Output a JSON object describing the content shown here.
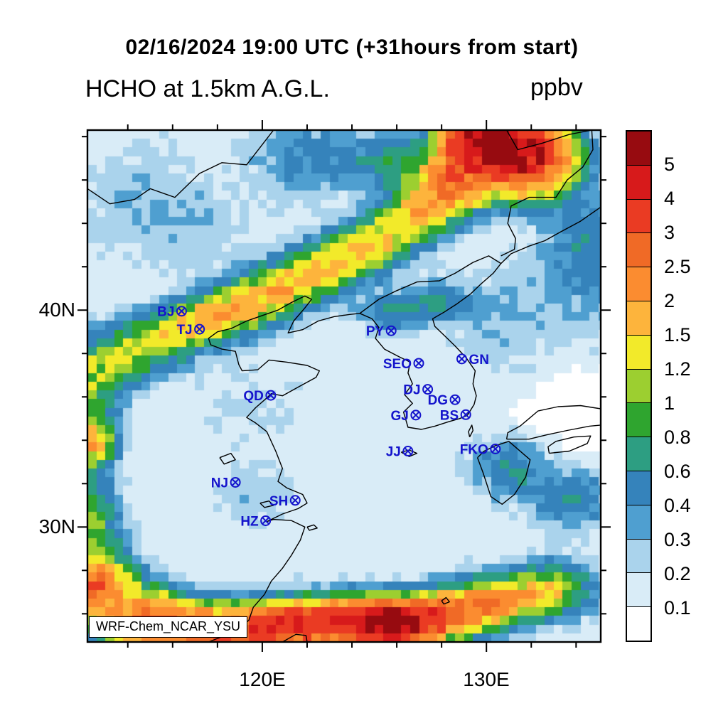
{
  "titles": {
    "datetime": "02/16/2024 19:00 UTC (+31hours from start)",
    "variable": "HCHO at 1.5km A.G.L.",
    "units": "ppbv"
  },
  "watermark": "WRF-Chem_NCAR_YSU",
  "axes": {
    "x_major": [
      {
        "deg": 120,
        "label": "120E"
      },
      {
        "deg": 130,
        "label": "130E"
      }
    ],
    "y_major": [
      {
        "deg": 40,
        "label": "40N"
      },
      {
        "deg": 30,
        "label": "30N"
      }
    ],
    "minor_step_deg": 2
  },
  "station_color": "#1414cc",
  "stations": [
    {
      "id": "BJ",
      "lon": 116.4,
      "lat": 39.95,
      "side": "left"
    },
    {
      "id": "TJ",
      "lon": 117.2,
      "lat": 39.12,
      "side": "left"
    },
    {
      "id": "PY",
      "lon": 125.75,
      "lat": 39.05,
      "side": "left"
    },
    {
      "id": "SEO",
      "lon": 126.98,
      "lat": 37.55,
      "side": "left"
    },
    {
      "id": "GN",
      "lon": 128.9,
      "lat": 37.75,
      "side": "right"
    },
    {
      "id": "QD",
      "lon": 120.38,
      "lat": 36.07,
      "side": "left"
    },
    {
      "id": "DJ",
      "lon": 127.38,
      "lat": 36.35,
      "side": "left"
    },
    {
      "id": "DG",
      "lon": 128.6,
      "lat": 35.87,
      "side": "left"
    },
    {
      "id": "GJ",
      "lon": 126.85,
      "lat": 35.16,
      "side": "left"
    },
    {
      "id": "BS",
      "lon": 129.08,
      "lat": 35.18,
      "side": "left"
    },
    {
      "id": "JJ",
      "lon": 126.5,
      "lat": 33.5,
      "side": "left"
    },
    {
      "id": "FKO",
      "lon": 130.4,
      "lat": 33.6,
      "side": "left"
    },
    {
      "id": "NJ",
      "lon": 118.8,
      "lat": 32.06,
      "side": "left"
    },
    {
      "id": "SH",
      "lon": 121.47,
      "lat": 31.23,
      "side": "left"
    },
    {
      "id": "HZ",
      "lon": 120.15,
      "lat": 30.29,
      "side": "left"
    }
  ],
  "chart_data": {
    "type": "heatmap",
    "title": "HCHO at 1.5km A.G.L.",
    "subtitle": "02/16/2024 19:00 UTC (+31hours from start)",
    "units": "ppbv",
    "model": "WRF-Chem_NCAR_YSU",
    "lon_range": [
      112.2,
      135.1
    ],
    "lat_range": [
      24.7,
      48.3
    ],
    "levels": [
      0.1,
      0.2,
      0.3,
      0.4,
      0.6,
      0.8,
      1,
      1.2,
      1.5,
      2,
      2.5,
      3,
      4,
      5
    ],
    "band_colors": [
      "#ffffff",
      "#d9ecf7",
      "#aad3ec",
      "#4f9fd0",
      "#3583bb",
      "#2d9e82",
      "#2fa52f",
      "#9ccf30",
      "#f2ea2a",
      "#fdb43c",
      "#fb8c30",
      "#f06a26",
      "#ea3b23",
      "#d71a1b",
      "#970b10"
    ],
    "field": {
      "base": 0.14,
      "noise": 0.22,
      "cell_deg": 0.4,
      "blobs": [
        [
          130.0,
          47.9,
          1.7,
          1.2,
          5.2
        ],
        [
          131.8,
          47.0,
          1.9,
          1.5,
          4.2
        ],
        [
          128.8,
          46.1,
          1.5,
          1.2,
          2.2
        ],
        [
          127.5,
          44.9,
          1.4,
          1.1,
          1.3
        ],
        [
          125.8,
          46.8,
          1.6,
          1.2,
          0.6
        ],
        [
          126.2,
          43.9,
          1.5,
          1.0,
          1.1
        ],
        [
          124.6,
          42.9,
          1.6,
          1.0,
          1.2
        ],
        [
          122.8,
          41.9,
          1.7,
          1.0,
          1.3
        ],
        [
          120.8,
          40.9,
          1.7,
          1.0,
          1.4
        ],
        [
          118.8,
          40.0,
          1.6,
          1.0,
          1.35
        ],
        [
          117.0,
          39.3,
          1.5,
          1.0,
          1.2
        ],
        [
          115.2,
          38.5,
          1.5,
          1.1,
          1.0
        ],
        [
          113.4,
          37.7,
          1.4,
          1.2,
          0.9
        ],
        [
          125.8,
          39.9,
          1.3,
          0.8,
          0.5
        ],
        [
          127.9,
          40.4,
          1.4,
          0.9,
          0.45
        ],
        [
          112.2,
          36.0,
          1.2,
          1.8,
          0.9
        ],
        [
          112.4,
          33.9,
          0.9,
          0.9,
          1.7
        ],
        [
          112.2,
          31.3,
          1.2,
          1.6,
          0.6
        ],
        [
          112.3,
          29.6,
          1.2,
          1.2,
          0.7
        ],
        [
          112.4,
          27.2,
          1.6,
          1.4,
          2.6
        ],
        [
          114.9,
          25.7,
          1.8,
          1.2,
          2.4
        ],
        [
          117.3,
          25.2,
          1.8,
          1.1,
          2.2
        ],
        [
          119.8,
          25.3,
          1.8,
          1.0,
          2.5
        ],
        [
          122.0,
          25.6,
          1.8,
          1.0,
          2.9
        ],
        [
          124.3,
          25.6,
          1.6,
          1.0,
          3.1
        ],
        [
          126.1,
          25.5,
          1.4,
          0.9,
          5.5
        ],
        [
          128.2,
          26.0,
          1.7,
          1.0,
          2.6
        ],
        [
          130.6,
          26.6,
          1.7,
          1.0,
          1.7
        ],
        [
          132.9,
          27.1,
          1.7,
          1.1,
          1.1
        ],
        [
          131.0,
          32.7,
          1.4,
          1.2,
          0.5
        ],
        [
          133.8,
          31.3,
          1.6,
          1.3,
          0.45
        ],
        [
          134.5,
          41.5,
          2.6,
          2.6,
          0.25
        ],
        [
          134.8,
          43.6,
          1.6,
          1.6,
          0.3
        ],
        [
          130.4,
          39.4,
          2.0,
          2.0,
          0.15
        ],
        [
          122.0,
          47.0,
          2.2,
          1.6,
          0.35
        ],
        [
          114.5,
          45.2,
          3.0,
          2.4,
          0.15
        ],
        [
          117.2,
          43.6,
          2.2,
          2.0,
          0.12
        ],
        [
          119.6,
          31.4,
          1.6,
          1.2,
          0.15
        ],
        [
          119.5,
          35.6,
          2.0,
          2.0,
          0.1
        ],
        [
          132.6,
          35.2,
          1.6,
          0.9,
          -0.1
        ],
        [
          134.6,
          34.0,
          1.5,
          1.3,
          -0.09
        ],
        [
          134.2,
          36.4,
          1.5,
          1.2,
          -0.1
        ]
      ]
    }
  },
  "coastlines": [
    {
      "name": "china-coast",
      "pts": [
        [
          117.6,
          24.7
        ],
        [
          118.1,
          24.9
        ],
        [
          118.8,
          25.2
        ],
        [
          119.4,
          25.7
        ],
        [
          119.6,
          26.3
        ],
        [
          120.1,
          26.9
        ],
        [
          120.4,
          27.5
        ],
        [
          120.9,
          28.1
        ],
        [
          121.3,
          28.7
        ],
        [
          121.7,
          29.4
        ],
        [
          121.9,
          30.0
        ],
        [
          121.3,
          30.3
        ],
        [
          120.5,
          30.35
        ],
        [
          120.2,
          30.25
        ],
        [
          120.9,
          30.6
        ],
        [
          121.6,
          30.85
        ],
        [
          122.0,
          31.1
        ],
        [
          121.8,
          31.5
        ],
        [
          121.1,
          31.8
        ],
        [
          120.7,
          32.1
        ],
        [
          120.9,
          32.7
        ],
        [
          120.6,
          33.5
        ],
        [
          120.2,
          34.4
        ],
        [
          119.7,
          34.8
        ],
        [
          119.3,
          35.05
        ],
        [
          119.7,
          35.5
        ],
        [
          120.2,
          35.95
        ],
        [
          120.4,
          36.15
        ],
        [
          120.9,
          36.05
        ],
        [
          121.6,
          36.45
        ],
        [
          122.4,
          36.9
        ],
        [
          122.55,
          37.2
        ],
        [
          122.0,
          37.45
        ],
        [
          121.1,
          37.6
        ],
        [
          120.3,
          37.7
        ],
        [
          119.8,
          37.25
        ],
        [
          119.1,
          37.2
        ],
        [
          118.95,
          37.5
        ],
        [
          118.8,
          38.1
        ],
        [
          118.2,
          38.2
        ],
        [
          117.7,
          38.4
        ],
        [
          117.6,
          38.7
        ],
        [
          118.0,
          39.0
        ],
        [
          118.6,
          39.15
        ],
        [
          119.3,
          39.5
        ],
        [
          120.0,
          39.75
        ],
        [
          120.7,
          40.0
        ],
        [
          121.3,
          40.35
        ],
        [
          121.9,
          40.65
        ],
        [
          122.2,
          40.5
        ],
        [
          121.9,
          40.1
        ],
        [
          121.4,
          39.5
        ],
        [
          121.15,
          38.95
        ],
        [
          121.8,
          39.1
        ],
        [
          122.5,
          39.5
        ],
        [
          123.2,
          39.7
        ],
        [
          123.9,
          39.8
        ],
        [
          124.35,
          39.85
        ]
      ]
    },
    {
      "name": "korea-coast",
      "pts": [
        [
          124.35,
          39.85
        ],
        [
          124.9,
          39.6
        ],
        [
          125.2,
          39.2
        ],
        [
          125.05,
          38.7
        ],
        [
          125.45,
          38.2
        ],
        [
          126.1,
          37.85
        ],
        [
          126.6,
          37.6
        ],
        [
          126.5,
          37.1
        ],
        [
          126.7,
          36.6
        ],
        [
          126.35,
          36.1
        ],
        [
          126.7,
          35.7
        ],
        [
          126.3,
          35.3
        ],
        [
          126.5,
          34.6
        ],
        [
          127.1,
          34.5
        ],
        [
          127.7,
          34.65
        ],
        [
          128.3,
          34.85
        ],
        [
          128.8,
          35.0
        ],
        [
          129.15,
          35.15
        ],
        [
          129.45,
          35.65
        ],
        [
          129.55,
          36.05
        ],
        [
          129.4,
          36.6
        ],
        [
          129.5,
          37.2
        ],
        [
          129.1,
          37.8
        ],
        [
          128.6,
          38.35
        ],
        [
          128.1,
          38.85
        ],
        [
          127.7,
          39.25
        ],
        [
          127.6,
          39.6
        ],
        [
          128.1,
          39.9
        ],
        [
          128.7,
          40.3
        ],
        [
          129.3,
          40.75
        ],
        [
          129.75,
          41.2
        ],
        [
          130.3,
          41.7
        ],
        [
          130.65,
          42.15
        ],
        [
          131.1,
          42.6
        ],
        [
          131.9,
          42.95
        ],
        [
          132.6,
          43.2
        ],
        [
          133.3,
          43.6
        ],
        [
          134.2,
          44.1
        ],
        [
          135.1,
          44.75
        ]
      ]
    },
    {
      "name": "yalu-tumen-border",
      "pts": [
        [
          124.35,
          39.85
        ],
        [
          125.2,
          40.5
        ],
        [
          126.0,
          40.9
        ],
        [
          126.9,
          41.3
        ],
        [
          127.9,
          41.35
        ],
        [
          128.6,
          41.7
        ],
        [
          129.4,
          42.2
        ],
        [
          130.1,
          42.5
        ],
        [
          130.65,
          42.15
        ]
      ]
    },
    {
      "name": "ussuri-border",
      "pts": [
        [
          130.9,
          48.3
        ],
        [
          131.4,
          47.4
        ],
        [
          132.5,
          47.7
        ],
        [
          133.7,
          48.1
        ],
        [
          134.7,
          48.3
        ],
        [
          134.75,
          47.4
        ],
        [
          134.3,
          46.6
        ],
        [
          133.6,
          46.0
        ],
        [
          133.1,
          45.2
        ],
        [
          131.9,
          45.2
        ],
        [
          131.1,
          44.8
        ],
        [
          130.95,
          44.0
        ],
        [
          131.3,
          43.3
        ],
        [
          131.25,
          42.8
        ],
        [
          130.65,
          42.5
        ]
      ]
    },
    {
      "name": "mongolia-border",
      "pts": [
        [
          112.2,
          45.6
        ],
        [
          113.2,
          44.9
        ],
        [
          114.3,
          45.1
        ],
        [
          115.0,
          45.6
        ],
        [
          116.1,
          45.2
        ],
        [
          117.2,
          46.3
        ],
        [
          118.2,
          46.8
        ],
        [
          119.3,
          46.7
        ],
        [
          119.9,
          47.5
        ],
        [
          120.5,
          48.3
        ]
      ]
    },
    {
      "name": "kyushu",
      "pts": [
        [
          129.6,
          33.2
        ],
        [
          129.85,
          32.5
        ],
        [
          130.2,
          31.4
        ],
        [
          130.7,
          31.05
        ],
        [
          131.25,
          31.5
        ],
        [
          131.75,
          32.3
        ],
        [
          131.95,
          33.1
        ],
        [
          131.0,
          33.95
        ],
        [
          130.4,
          33.75
        ],
        [
          129.9,
          33.5
        ],
        [
          129.6,
          33.2
        ]
      ]
    },
    {
      "name": "honshu-south-coast",
      "pts": [
        [
          130.9,
          34.05
        ],
        [
          131.9,
          34.05
        ],
        [
          132.7,
          34.25
        ],
        [
          133.6,
          34.45
        ],
        [
          134.6,
          34.65
        ],
        [
          135.1,
          34.7
        ]
      ]
    },
    {
      "name": "honshu-north-coast",
      "pts": [
        [
          135.1,
          35.45
        ],
        [
          134.2,
          35.6
        ],
        [
          133.2,
          35.55
        ],
        [
          132.3,
          35.35
        ],
        [
          131.5,
          34.65
        ],
        [
          130.95,
          34.35
        ],
        [
          130.9,
          34.05
        ]
      ]
    },
    {
      "name": "shikoku",
      "pts": [
        [
          132.8,
          33.4
        ],
        [
          133.7,
          33.5
        ],
        [
          134.5,
          33.85
        ],
        [
          134.65,
          34.2
        ],
        [
          133.9,
          34.15
        ],
        [
          133.1,
          33.95
        ],
        [
          132.75,
          33.7
        ],
        [
          132.8,
          33.4
        ]
      ]
    },
    {
      "name": "jeju-island",
      "pts": [
        [
          126.2,
          33.45
        ],
        [
          126.55,
          33.55
        ],
        [
          126.9,
          33.4
        ],
        [
          126.55,
          33.25
        ],
        [
          126.2,
          33.45
        ]
      ]
    },
    {
      "name": "tsushima-island",
      "pts": [
        [
          129.25,
          34.15
        ],
        [
          129.4,
          34.45
        ],
        [
          129.35,
          34.7
        ],
        [
          129.2,
          34.4
        ],
        [
          129.25,
          34.15
        ]
      ]
    },
    {
      "name": "zhoushan-island",
      "pts": [
        [
          122.0,
          30.0
        ],
        [
          122.3,
          30.1
        ],
        [
          122.45,
          29.95
        ],
        [
          122.1,
          29.85
        ],
        [
          122.0,
          30.0
        ]
      ]
    },
    {
      "name": "taiwan-north",
      "pts": [
        [
          120.9,
          24.7
        ],
        [
          121.5,
          25.05
        ],
        [
          121.95,
          25.0
        ],
        [
          122.0,
          24.7
        ]
      ]
    },
    {
      "name": "amami-island",
      "pts": [
        [
          128.0,
          26.6
        ],
        [
          128.2,
          26.75
        ],
        [
          128.35,
          26.55
        ],
        [
          128.1,
          26.45
        ],
        [
          128.0,
          26.6
        ]
      ]
    },
    {
      "name": "taihu-lake",
      "pts": [
        [
          119.9,
          31.1
        ],
        [
          120.3,
          31.2
        ],
        [
          120.5,
          31.0
        ],
        [
          120.1,
          30.9
        ],
        [
          119.9,
          31.1
        ]
      ]
    },
    {
      "name": "hongze-lake",
      "pts": [
        [
          118.1,
          33.2
        ],
        [
          118.6,
          33.4
        ],
        [
          118.8,
          33.1
        ],
        [
          118.3,
          32.9
        ],
        [
          118.1,
          33.2
        ]
      ]
    }
  ]
}
